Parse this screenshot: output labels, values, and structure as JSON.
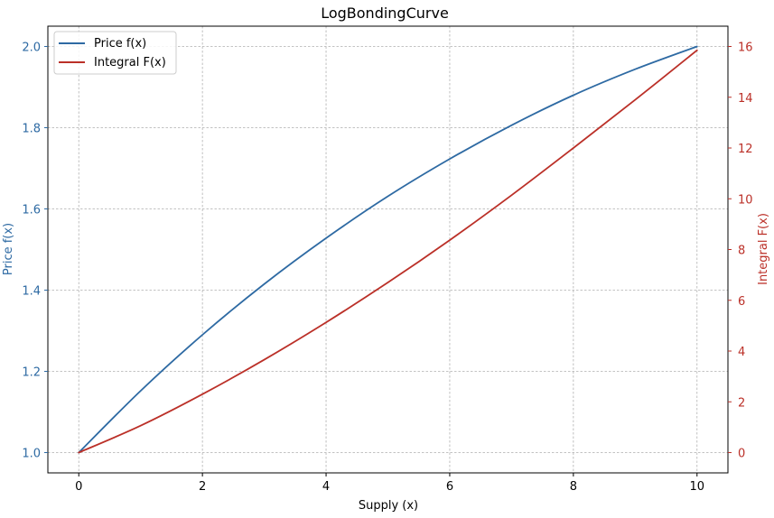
{
  "chart_data": {
    "type": "line",
    "title": "LogBondingCurve",
    "xlabel": "Supply (x)",
    "ylabel_left": "Price f(x)",
    "ylabel_right": "Integral F(x)",
    "xlim": [
      -0.5,
      10.5
    ],
    "ylim_left": [
      0.95,
      2.05
    ],
    "ylim_right": [
      -0.8,
      16.8
    ],
    "x_ticks": [
      0,
      2,
      4,
      6,
      8,
      10
    ],
    "y_left_ticks": [
      1.0,
      1.2,
      1.4,
      1.6,
      1.8,
      2.0
    ],
    "y_right_ticks": [
      0,
      2,
      4,
      6,
      8,
      10,
      12,
      14,
      16
    ],
    "grid": true,
    "legend_position": "top-left",
    "series": [
      {
        "name": "Price f(x)",
        "axis": "left",
        "color": "#2e6aa3",
        "x": [
          0,
          1,
          2,
          3,
          4,
          5,
          6,
          7,
          8,
          9,
          10
        ],
        "y": [
          1.0,
          1.152,
          1.29,
          1.415,
          1.528,
          1.631,
          1.723,
          1.806,
          1.88,
          1.944,
          2.0
        ]
      },
      {
        "name": "Integral F(x)",
        "axis": "right",
        "color": "#bb3028",
        "x": [
          0,
          1,
          2,
          3,
          4,
          5,
          6,
          7,
          8,
          9,
          10
        ],
        "y": [
          0,
          1.06,
          2.3,
          3.66,
          5.13,
          6.7,
          8.37,
          10.14,
          12.0,
          13.9,
          15.85
        ]
      }
    ]
  }
}
